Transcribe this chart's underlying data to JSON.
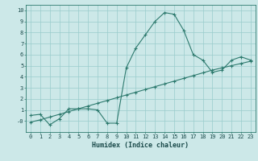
{
  "xlabel": "Humidex (Indice chaleur)",
  "bg_color": "#cce8e8",
  "grid_color": "#99cccc",
  "line_color": "#2d7a6e",
  "xlim": [
    -0.5,
    23.5
  ],
  "ylim": [
    -1.0,
    10.5
  ],
  "xticks": [
    0,
    1,
    2,
    3,
    4,
    5,
    6,
    7,
    8,
    9,
    10,
    11,
    12,
    13,
    14,
    15,
    16,
    17,
    18,
    19,
    20,
    21,
    22,
    23
  ],
  "yticks": [
    0,
    1,
    2,
    3,
    4,
    5,
    6,
    7,
    8,
    9,
    10
  ],
  "ytick_labels": [
    "-0",
    "1",
    "2",
    "3",
    "4",
    "5",
    "6",
    "7",
    "8",
    "9",
    "10"
  ],
  "curve1_x": [
    0,
    1,
    2,
    3,
    4,
    5,
    6,
    7,
    8,
    9,
    10,
    11,
    12,
    13,
    14,
    15,
    16,
    17,
    18,
    19,
    20,
    21,
    22,
    23
  ],
  "curve1_y": [
    0.5,
    0.6,
    -0.35,
    0.2,
    1.1,
    1.1,
    1.1,
    1.0,
    -0.2,
    -0.2,
    4.8,
    6.6,
    7.8,
    9.0,
    9.8,
    9.65,
    8.2,
    6.0,
    5.5,
    4.4,
    4.6,
    5.5,
    5.8,
    5.5
  ],
  "curve2_x": [
    0,
    1,
    2,
    3,
    4,
    5,
    6,
    7,
    8,
    9,
    10,
    11,
    12,
    13,
    14,
    15,
    16,
    17,
    18,
    19,
    20,
    21,
    22,
    23
  ],
  "curve2_y": [
    -0.1,
    0.1,
    0.35,
    0.6,
    0.85,
    1.1,
    1.35,
    1.6,
    1.85,
    2.1,
    2.35,
    2.6,
    2.85,
    3.1,
    3.35,
    3.6,
    3.85,
    4.1,
    4.35,
    4.6,
    4.8,
    5.0,
    5.2,
    5.4
  ],
  "tick_fontsize": 5.0,
  "xlabel_fontsize": 6.0
}
